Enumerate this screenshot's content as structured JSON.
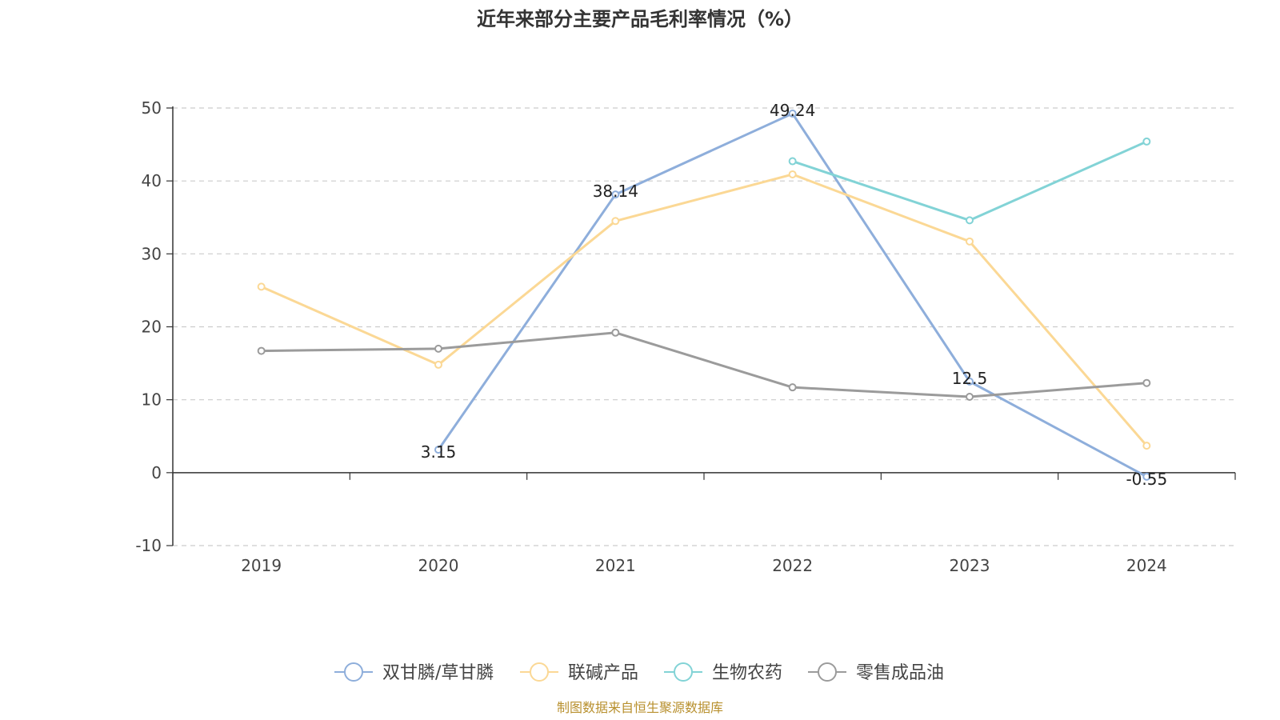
{
  "chart_data": {
    "type": "line",
    "title": "近年来部分主要产品毛利率情况（%）",
    "categories": [
      "2019",
      "2020",
      "2021",
      "2022",
      "2023",
      "2024"
    ],
    "ylim": [
      -10,
      50
    ],
    "yticks": [
      -10,
      0,
      10,
      20,
      30,
      40,
      50
    ],
    "grid": true,
    "legend_position": "bottom",
    "series": [
      {
        "name": "双甘膦/草甘膦",
        "color": "#8eaedb",
        "values": [
          null,
          3.15,
          38.14,
          49.24,
          12.5,
          -0.55
        ],
        "labels": [
          null,
          "3.15",
          "38.14",
          "49.24",
          "12.5",
          "-0.55"
        ]
      },
      {
        "name": "联碱产品",
        "color": "#fbd895",
        "values": [
          25.5,
          14.8,
          34.5,
          40.9,
          31.7,
          3.7
        ]
      },
      {
        "name": "生物农药",
        "color": "#82d3d6",
        "values": [
          null,
          null,
          null,
          42.7,
          34.6,
          45.4
        ]
      },
      {
        "name": "零售成品油",
        "color": "#9b9b9b",
        "values": [
          16.7,
          17.0,
          19.2,
          11.7,
          10.4,
          12.3
        ]
      }
    ]
  },
  "source": "制图数据来自恒生聚源数据库"
}
